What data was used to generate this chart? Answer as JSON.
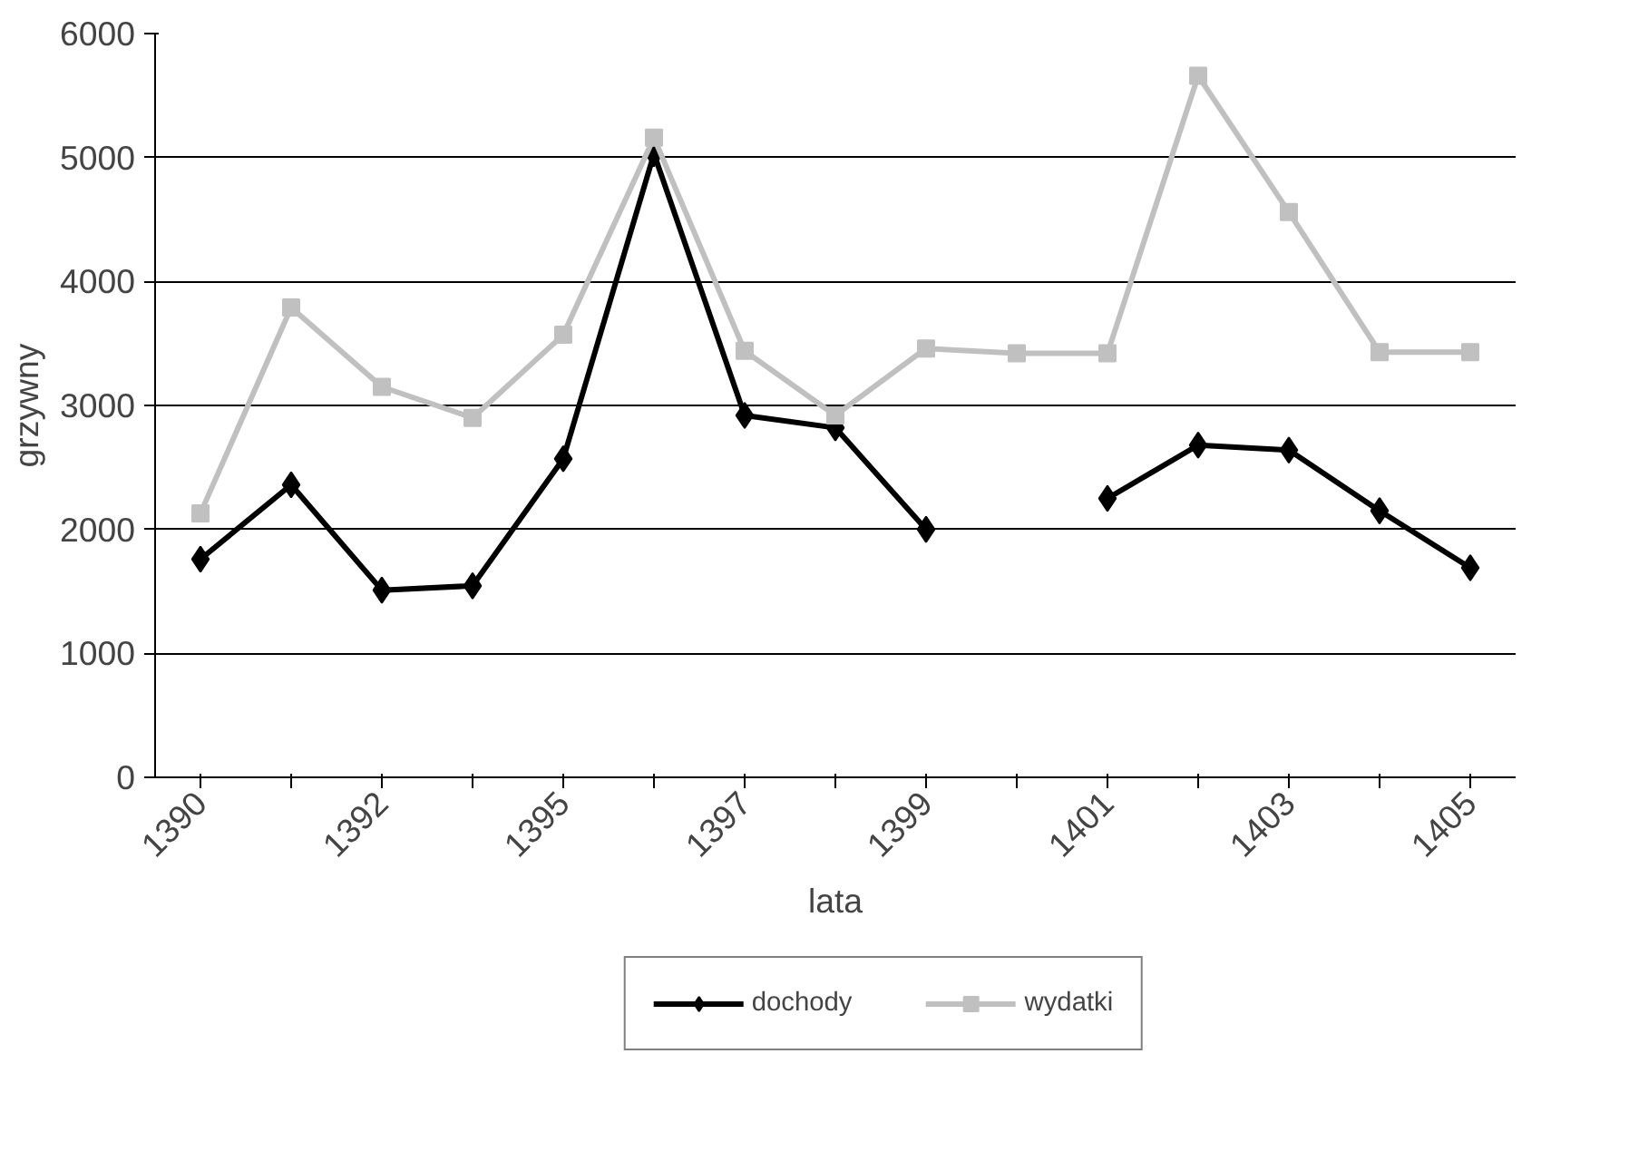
{
  "chart_data": {
    "type": "line",
    "xlabel": "lata",
    "ylabel": "grzywny",
    "categories": [
      "1390",
      null,
      "1392",
      null,
      "1395",
      null,
      "1397",
      null,
      "1399",
      null,
      "1401",
      null,
      "1403",
      null,
      "1405"
    ],
    "series": [
      {
        "name": "dochody",
        "color": "#000000",
        "marker": "diamond",
        "values": [
          1760,
          2360,
          1510,
          1545,
          2570,
          5030,
          2920,
          2820,
          2000,
          null,
          2250,
          2680,
          2640,
          2150,
          1690
        ]
      },
      {
        "name": "wydatki",
        "color": "#c0c0c0",
        "marker": "square",
        "values": [
          2130,
          3790,
          3150,
          2900,
          3570,
          5160,
          3440,
          2920,
          3460,
          3420,
          3420,
          5660,
          4560,
          3430,
          3430
        ]
      }
    ],
    "ylim": [
      0,
      6000
    ],
    "yticks": [
      0,
      1000,
      2000,
      3000,
      4000,
      5000,
      6000
    ],
    "grid": "y",
    "legend": "bottom",
    "line_style": "solid"
  }
}
